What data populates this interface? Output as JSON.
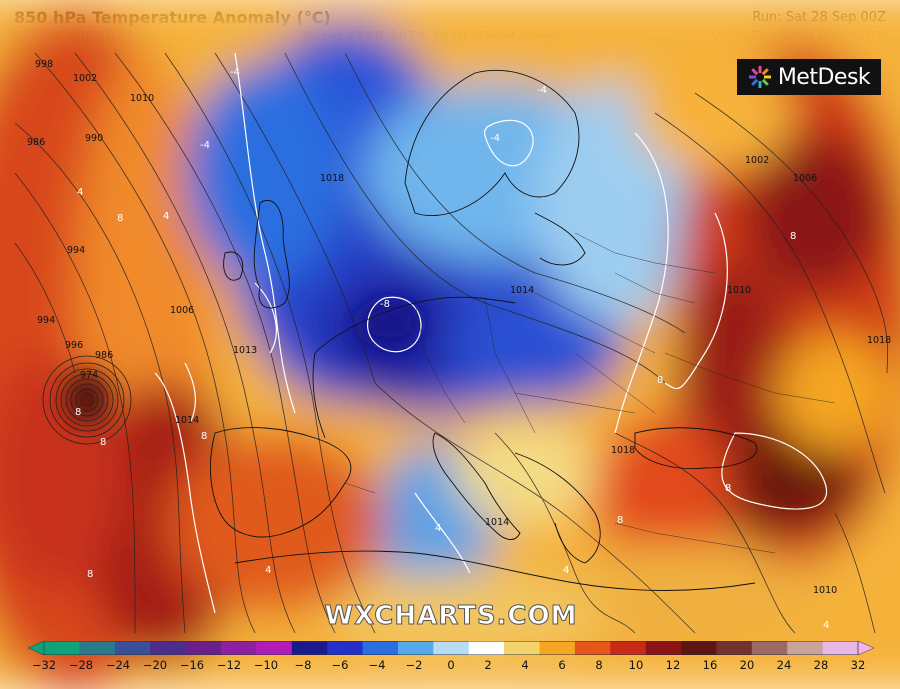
{
  "header": {
    "title": "850 hPa Temperature Anomaly (°C)",
    "model": "ECMWF HRES 0.1°",
    "base": "Base: CFSR 1979-2010 climatology",
    "run": "Run: Sat 28 Sep 00Z",
    "valid": "Valid: Thu 3 Oct 00:00 UTC"
  },
  "logo": {
    "text": "MetDesk",
    "icon": "metdesk-sun-icon"
  },
  "watermark": "WXCHARTS.COM",
  "isobar_labels": [
    "998",
    "1002",
    "1010",
    "986",
    "990",
    "994",
    "994",
    "996",
    "986",
    "974",
    "1006",
    "1013",
    "1014",
    "1018",
    "1014",
    "1002",
    "1006",
    "1010",
    "1018",
    "1018",
    "1014",
    "1010"
  ],
  "anomaly_labels": [
    "-4",
    "-4",
    "-4",
    "-4",
    "8",
    "4",
    "4",
    "8",
    "-8",
    "4",
    "8",
    "8",
    "8",
    "4",
    "8",
    "8",
    "8",
    "8",
    "4",
    "4"
  ],
  "colorbar": {
    "ticks": [
      "−32",
      "−28",
      "−24",
      "−20",
      "−16",
      "−12",
      "−10",
      "−8",
      "−6",
      "−4",
      "−2",
      "0",
      "2",
      "4",
      "6",
      "8",
      "10",
      "12",
      "16",
      "20",
      "24",
      "28",
      "32"
    ],
    "colors": [
      "#0ea37a",
      "#2b7a8c",
      "#3a4e9a",
      "#4b2d8e",
      "#6b1f8a",
      "#8e1fa0",
      "#b01cb8",
      "#1a1a8c",
      "#2530c8",
      "#2a6ee0",
      "#57a8ea",
      "#b7dcf2",
      "#ffffff",
      "#f4d36a",
      "#f5a623",
      "#e8571a",
      "#c82a16",
      "#8c1414",
      "#5e1612",
      "#73322c",
      "#9c6a62",
      "#c9a29a",
      "#e9b7e6"
    ],
    "left_arrow_color": "#0ea37a",
    "right_arrow_color": "#f0b6ec"
  }
}
